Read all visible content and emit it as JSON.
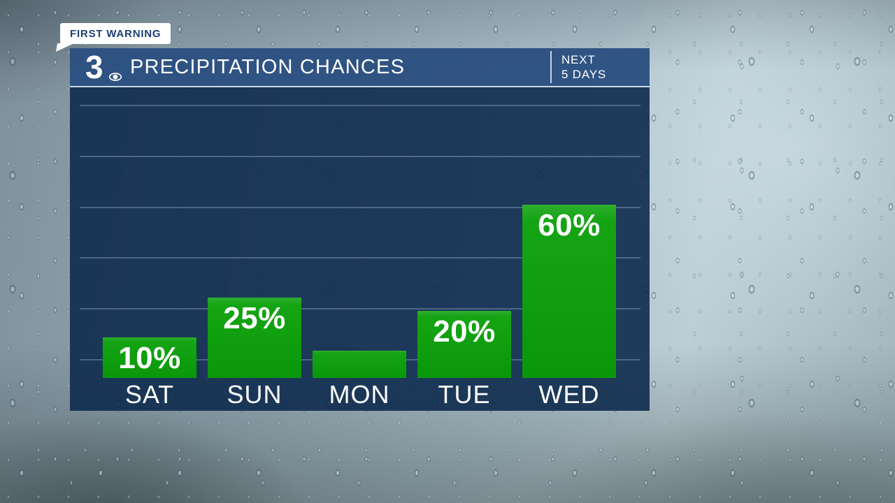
{
  "badge": {
    "label": "FIRST WARNING"
  },
  "header": {
    "station_logo": "3",
    "logo_icon": "cbs-eye-icon",
    "title": "PRECIPITATION CHANCES",
    "period": {
      "line1": "NEXT",
      "line2": "5 DAYS"
    }
  },
  "chart_data": {
    "type": "bar",
    "title": "PRECIPITATION CHANCES",
    "subtitle": "NEXT 5 DAYS",
    "categories": [
      "SAT",
      "SUN",
      "MON",
      "TUE",
      "WED"
    ],
    "values": [
      10,
      25,
      5,
      20,
      60
    ],
    "bar_labels": [
      "10%",
      "25%",
      "",
      "20%",
      "60%"
    ],
    "unit": "%",
    "ylim": [
      0,
      100
    ],
    "grid": true,
    "gridline_count": 6,
    "legend": false,
    "bar_color": "#0e9e0e",
    "label_color": "#ffffff"
  },
  "colors": {
    "header_bg": "#2b4f80",
    "panel_bg": "#143157",
    "bar_green_top": "#2fae2f",
    "bar_green_bottom": "#0a970a",
    "badge_bg": "#ffffff",
    "badge_text": "#1d3f72",
    "gridline": "#5a7691",
    "divider": "#ccd8e0",
    "text": "#ffffff"
  }
}
